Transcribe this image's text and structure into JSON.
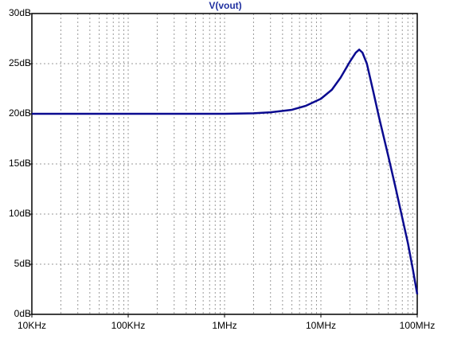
{
  "chart_data": {
    "type": "line",
    "title": "V(vout)",
    "x": [
      10000,
      100000,
      1000000,
      2000000,
      3000000,
      5000000,
      7000000,
      10000000,
      13000000,
      16000000,
      20000000,
      23000000,
      25000000,
      27000000,
      30000000,
      35000000,
      40000000,
      50000000,
      60000000,
      70000000,
      80000000,
      90000000,
      100000000
    ],
    "series": [
      {
        "name": "V(vout)",
        "color": "#0a0a90",
        "values": [
          20,
          20,
          20,
          20.05,
          20.15,
          20.4,
          20.8,
          21.5,
          22.4,
          23.6,
          25.2,
          26.1,
          26.4,
          26.1,
          25.0,
          22.2,
          19.7,
          15.8,
          12.5,
          9.6,
          7.1,
          4.5,
          2.0
        ]
      }
    ],
    "xlim": [
      10000,
      100000000
    ],
    "x_log": true,
    "xticks": [
      {
        "value": 10000,
        "label": "10KHz"
      },
      {
        "value": 100000,
        "label": "100KHz"
      },
      {
        "value": 1000000,
        "label": "1MHz"
      },
      {
        "value": 10000000,
        "label": "10MHz"
      },
      {
        "value": 100000000,
        "label": "100MHz"
      }
    ],
    "ylim": [
      0,
      30
    ],
    "yticks": [
      {
        "value": 0,
        "label": "0dB"
      },
      {
        "value": 5,
        "label": "5dB"
      },
      {
        "value": 10,
        "label": "10dB"
      },
      {
        "value": 15,
        "label": "15dB"
      },
      {
        "value": 20,
        "label": "20dB"
      },
      {
        "value": 25,
        "label": "25dB"
      },
      {
        "value": 30,
        "label": "30dB"
      }
    ],
    "grid": true
  }
}
